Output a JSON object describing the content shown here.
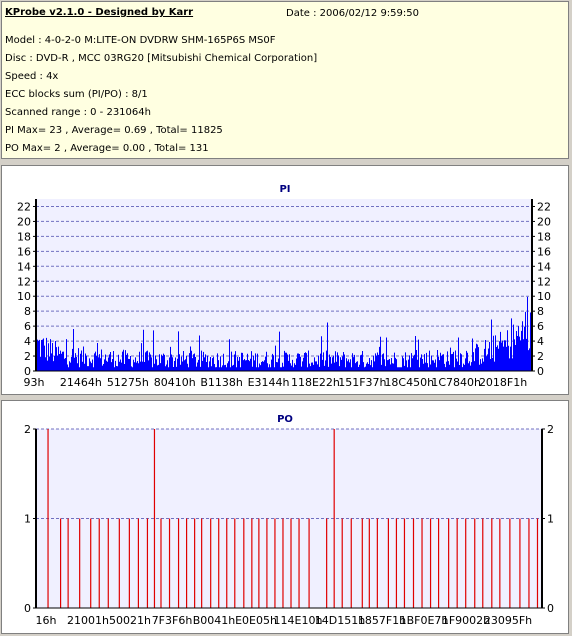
{
  "info": {
    "title": "KProbe v2.1.0 - Designed by Karr",
    "date": "Date : 2006/02/12 9:59:50",
    "model": "Model : 4-0-2-0 M:LITE-ON DVDRW SHM-165P6S MS0F",
    "disc": "Disc : DVD-R , MCC 03RG20   [Mitsubishi Chemical Corporation]",
    "speed": "Speed : 4x",
    "ecc": "ECC blocks sum (PI/PO) : 8/1",
    "range": "Scanned range : 0 - 231064h",
    "pi": "PI Max= 23 , Average= 0.69 , Total= 11825",
    "po": "PO Max= 2 , Average= 0.00 , Total= 131"
  },
  "colors": {
    "pi_bar": "#0000ff",
    "po_bar": "#e00000",
    "plot_bg": "#f0f0ff",
    "grid": "#7070c0",
    "title": "#000080"
  },
  "chart_data": [
    {
      "type": "bar",
      "title": "PI",
      "ylim": [
        0,
        23
      ],
      "yticks": [
        0,
        2,
        4,
        6,
        8,
        10,
        12,
        14,
        16,
        18,
        20,
        22
      ],
      "xticks": [
        "93h",
        "21464h",
        "51275h",
        "80410h",
        "B1138h",
        "E3144h",
        "118E22h",
        "151F37h",
        "18C450h",
        "1C7840h",
        "2018F1h"
      ],
      "xlim_hex": [
        "93h",
        "231064h"
      ],
      "grid": true,
      "summary": {
        "max": 23,
        "average": 0.69,
        "total": 11825
      },
      "profile": [
        {
          "pos": 0.0,
          "base": 3.5,
          "spread": 4.5
        },
        {
          "pos": 0.05,
          "base": 2.0,
          "spread": 3.0
        },
        {
          "pos": 0.2,
          "base": 1.5,
          "spread": 2.5
        },
        {
          "pos": 0.5,
          "base": 1.5,
          "spread": 2.5
        },
        {
          "pos": 0.75,
          "base": 1.5,
          "spread": 2.5
        },
        {
          "pos": 0.88,
          "base": 2.0,
          "spread": 3.0
        },
        {
          "pos": 0.95,
          "base": 3.5,
          "spread": 4.5
        },
        {
          "pos": 1.0,
          "base": 6.0,
          "spread": 6.0
        }
      ]
    },
    {
      "type": "bar",
      "title": "PO",
      "ylim": [
        0,
        2
      ],
      "yticks": [
        0,
        1,
        2
      ],
      "xticks": [
        "16h",
        "21001h",
        "50021h",
        "7F3F6h",
        "B0041h",
        "E0E05h",
        "114E10h",
        "14D151h",
        "1857F1h",
        "1BF0E7h",
        "1F9002h",
        "23095Fh"
      ],
      "xlim_hex": [
        "16h",
        "23095Fh"
      ],
      "grid": true,
      "summary": {
        "max": 2,
        "average": 0.0,
        "total": 131
      },
      "bars": [
        [
          0.02,
          2
        ],
        [
          0.045,
          1
        ],
        [
          0.06,
          1
        ],
        [
          0.083,
          1
        ],
        [
          0.105,
          1
        ],
        [
          0.122,
          1
        ],
        [
          0.14,
          1
        ],
        [
          0.162,
          1
        ],
        [
          0.182,
          1
        ],
        [
          0.2,
          1
        ],
        [
          0.218,
          1
        ],
        [
          0.232,
          2
        ],
        [
          0.245,
          1
        ],
        [
          0.262,
          1
        ],
        [
          0.28,
          1
        ],
        [
          0.296,
          1
        ],
        [
          0.312,
          1
        ],
        [
          0.326,
          1
        ],
        [
          0.344,
          1
        ],
        [
          0.36,
          1
        ],
        [
          0.376,
          1
        ],
        [
          0.392,
          1
        ],
        [
          0.41,
          1
        ],
        [
          0.426,
          1
        ],
        [
          0.44,
          1
        ],
        [
          0.456,
          1
        ],
        [
          0.472,
          1
        ],
        [
          0.488,
          1
        ],
        [
          0.504,
          1
        ],
        [
          0.52,
          1
        ],
        [
          0.54,
          1
        ],
        [
          0.575,
          1
        ],
        [
          0.59,
          2
        ],
        [
          0.606,
          1
        ],
        [
          0.624,
          1
        ],
        [
          0.646,
          1
        ],
        [
          0.66,
          1
        ],
        [
          0.676,
          1
        ],
        [
          0.698,
          1
        ],
        [
          0.714,
          1
        ],
        [
          0.73,
          1
        ],
        [
          0.748,
          1
        ],
        [
          0.765,
          1
        ],
        [
          0.782,
          1
        ],
        [
          0.798,
          1
        ],
        [
          0.818,
          1
        ],
        [
          0.835,
          1
        ],
        [
          0.852,
          1
        ],
        [
          0.87,
          1
        ],
        [
          0.886,
          1
        ],
        [
          0.904,
          1
        ],
        [
          0.92,
          1
        ],
        [
          0.94,
          1
        ],
        [
          0.96,
          1
        ],
        [
          0.978,
          1
        ],
        [
          0.995,
          1
        ]
      ]
    }
  ]
}
